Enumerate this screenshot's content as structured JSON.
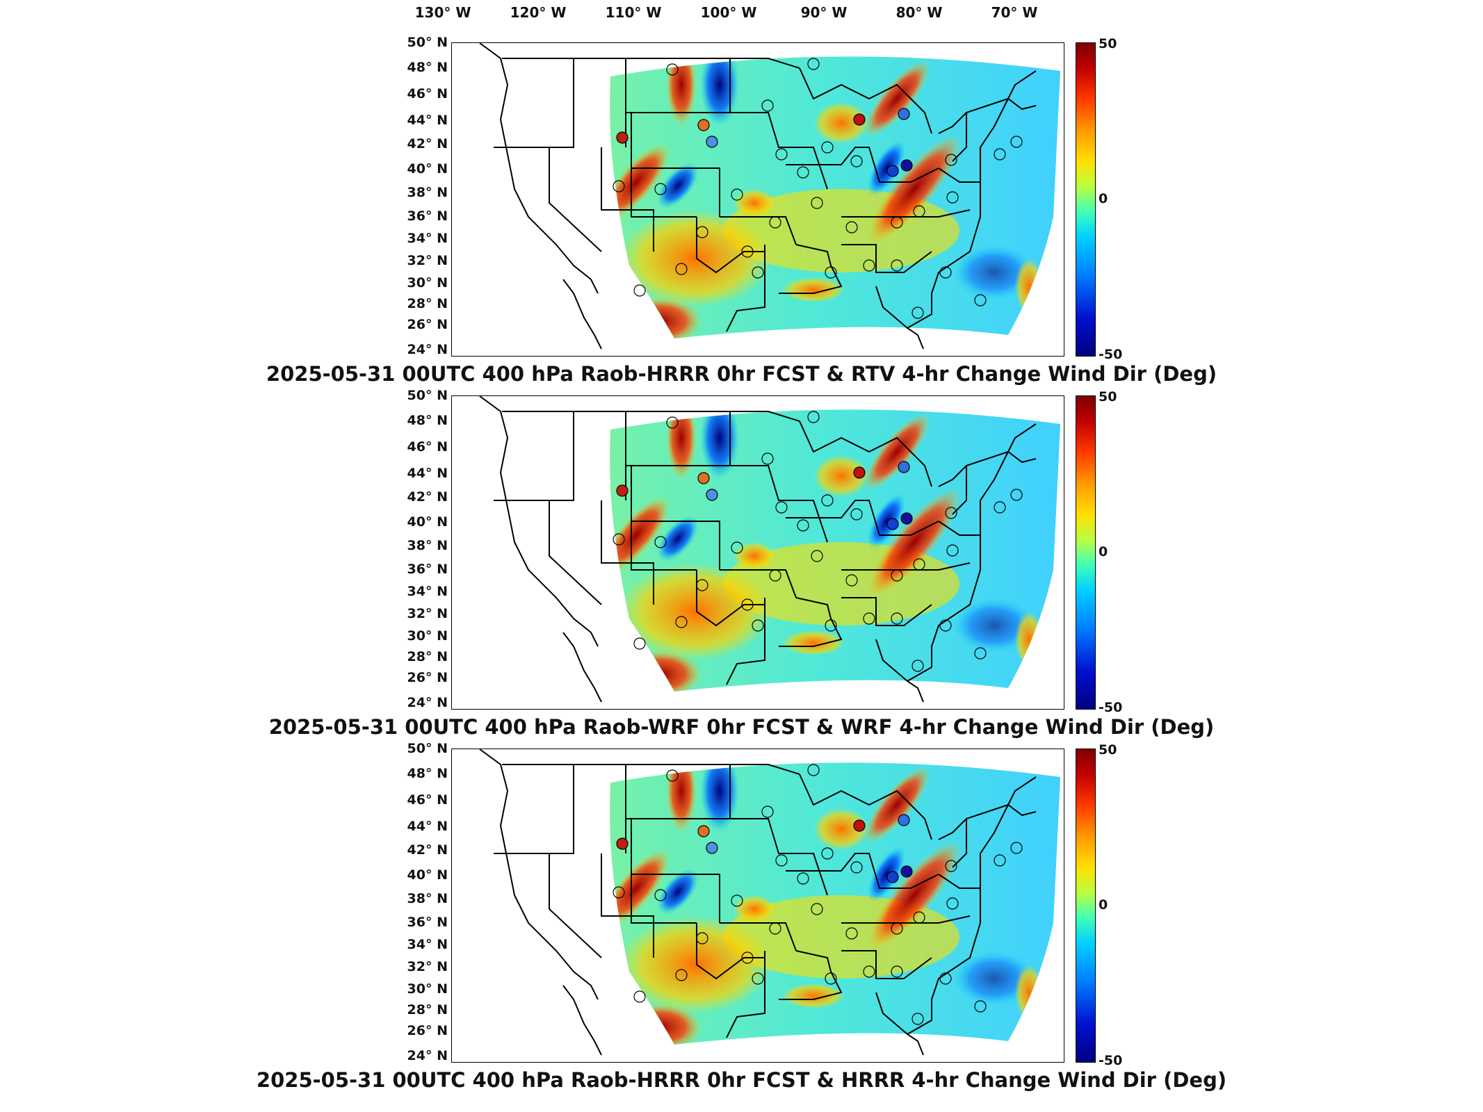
{
  "longitude_labels": [
    "130° W",
    "120° W",
    "110° W",
    "100° W",
    "90° W",
    "80° W",
    "70° W"
  ],
  "latitude_labels": [
    "50° N",
    "48° N",
    "46° N",
    "44° N",
    "42° N",
    "40° N",
    "38° N",
    "36° N",
    "34° N",
    "32° N",
    "30° N",
    "28° N",
    "26° N",
    "24° N"
  ],
  "colorbar": {
    "max_label": "50",
    "mid_label": "0",
    "min_label": "-50",
    "colors": [
      "#7f0000",
      "#ff3a00",
      "#ffe000",
      "#40ffb8",
      "#00d0ff",
      "#0010d0",
      "#00007f"
    ]
  },
  "panels": [
    {
      "title": "2025-05-31 00UTC 400 hPa Raob-HRRR 0hr FCST & RTV 4-hr Change Wind Dir (Deg)"
    },
    {
      "title": "2025-05-31 00UTC 400 hPa Raob-WRF 0hr FCST & WRF 4-hr Change Wind Dir (Deg)"
    },
    {
      "title": "2025-05-31 00UTC 400 hPa Raob-HRRR 0hr FCST & HRRR 4-hr Change Wind Dir (Deg)"
    }
  ]
}
